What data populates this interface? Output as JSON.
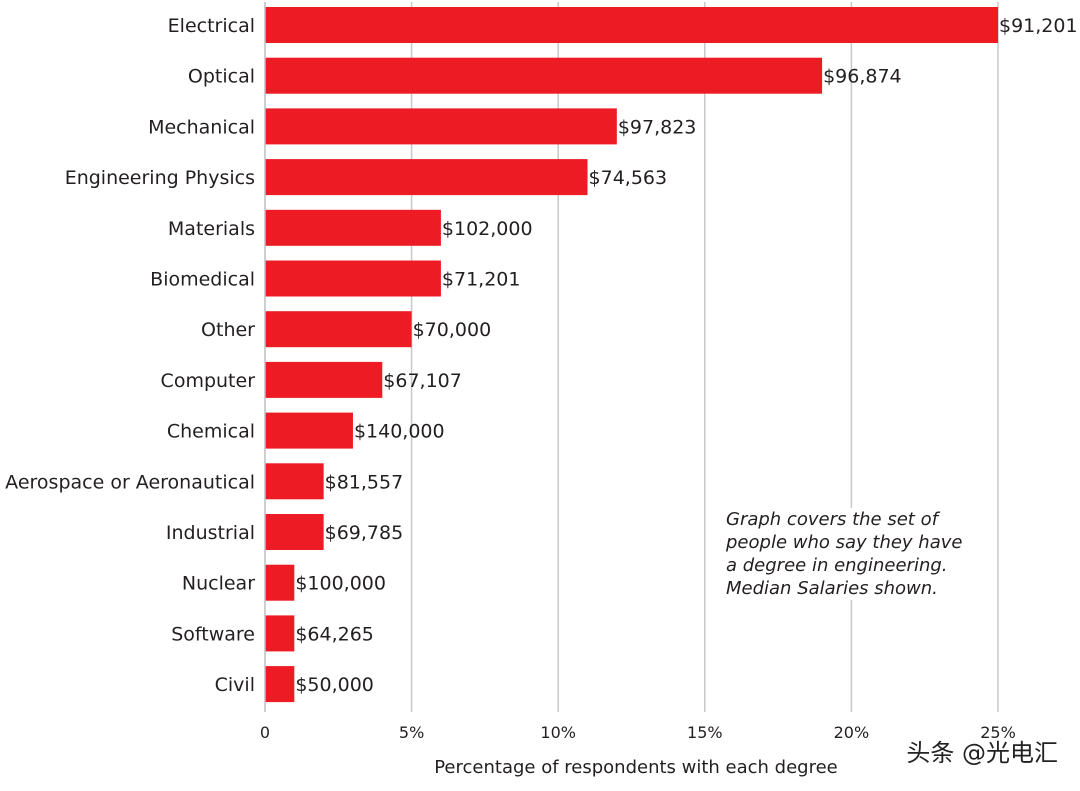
{
  "chart_data": {
    "type": "bar",
    "orientation": "horizontal",
    "categories": [
      "Electrical",
      "Optical",
      "Mechanical",
      "Engineering Physics",
      "Materials",
      "Biomedical",
      "Other",
      "Computer",
      "Chemical",
      "Aerospace or Aeronautical",
      "Industrial",
      "Nuclear",
      "Software",
      "Civil"
    ],
    "values": [
      25,
      19,
      12,
      11,
      6,
      6,
      5,
      4,
      3,
      2,
      2,
      1,
      1,
      1
    ],
    "value_labels": [
      "$91,201",
      "$96,874",
      "$97,823",
      "$74,563",
      "$102,000",
      "$71,201",
      "$70,000",
      "$67,107",
      "$140,000",
      "$81,557",
      "$69,785",
      "$100,000",
      "$64,265",
      "$50,000"
    ],
    "xlabel": "Percentage of respondents with each degree",
    "ylabel": "",
    "xlim": [
      0,
      25
    ],
    "x_ticks": [
      0,
      5,
      10,
      15,
      20,
      25
    ],
    "x_tick_labels": [
      "0",
      "5%",
      "10%",
      "15%",
      "20%",
      "25%"
    ],
    "grid": "vertical",
    "bar_color": "#ed1c24",
    "annotation": [
      "Graph covers the set of",
      "people who say they have",
      "a degree in engineering.",
      "Median Salaries shown."
    ]
  },
  "watermark": "头条 @光电汇"
}
